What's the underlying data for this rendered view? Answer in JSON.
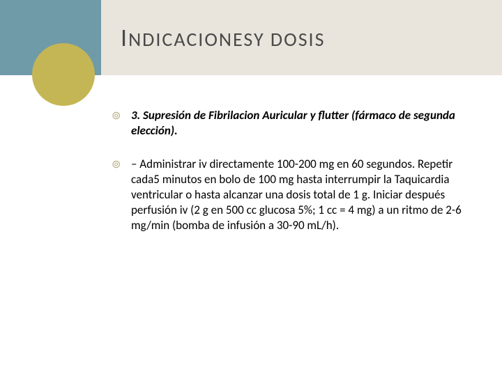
{
  "colors": {
    "header_left_bg": "#6f9aa8",
    "header_right_bg": "#e9e5dc",
    "circle_bg": "#c4b655",
    "title_color": "#4a4a4a",
    "bullet_color": "#b6ad83",
    "body_text": "#000000"
  },
  "title": {
    "first_letter": "I",
    "rest": "NDICACIONESY DOSIS"
  },
  "bullets": [
    {
      "glyph": "⊚",
      "text": "3. Supresión de Fibrilacion Auricular y flutter (fármaco de segunda elección).",
      "bold_italic": true
    },
    {
      "glyph": "⊚",
      "text": "– Administrar iv directamente 100-200 mg en 60 segundos. Repetir cada5 minutos en bolo de 100 mg hasta interrumpir la Taquicardia ventricular o hasta alcanzar una dosis total de 1 g. Iniciar después perfusión iv (2 g en 500 cc glucosa 5%; 1 cc = 4 mg) a un ritmo de 2-6 mg/min (bomba de infusión a 30-90 mL/h).",
      "bold_italic": false
    }
  ]
}
